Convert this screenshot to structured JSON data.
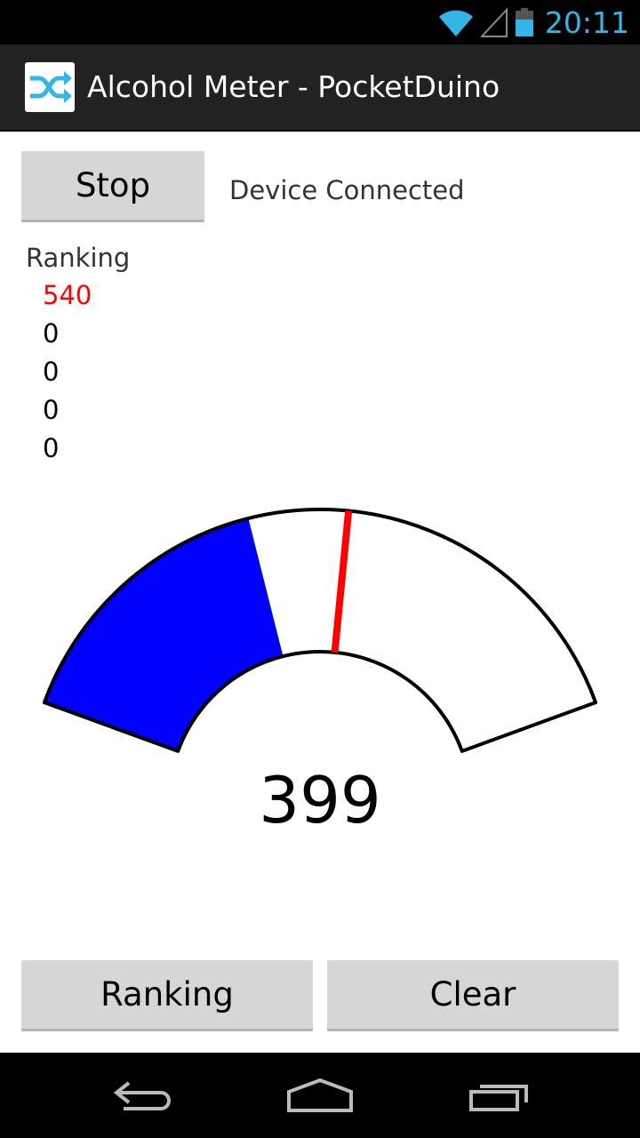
{
  "status_bar": {
    "time": "20:11",
    "icons": [
      "wifi-icon",
      "cell-signal-icon",
      "battery-icon"
    ],
    "accent_color": "#33b5e5"
  },
  "action_bar": {
    "app_icon": "shuffle-icon",
    "title": "Alcohol Meter - PocketDuino"
  },
  "controls": {
    "stop_label": "Stop",
    "connection_status": "Device Connected"
  },
  "ranking": {
    "heading": "Ranking",
    "values": [
      "540",
      "0",
      "0",
      "0",
      "0"
    ],
    "top_color": "#ff0000"
  },
  "gauge": {
    "reading": "399",
    "reading_value": 399,
    "peak_value": 540,
    "scale_max": 1000,
    "fill_color": "#0000ff",
    "needle_color": "#ff0000"
  },
  "footer": {
    "ranking_label": "Ranking",
    "clear_label": "Clear"
  },
  "nav_bar": {
    "icons": [
      "back-icon",
      "home-icon",
      "recent-apps-icon"
    ]
  }
}
